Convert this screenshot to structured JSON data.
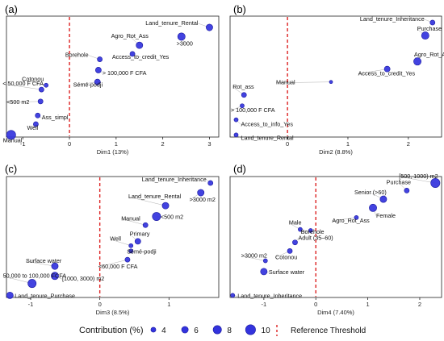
{
  "style": {
    "point_color": "#3333dd",
    "point_stroke": "#1a1aa0",
    "threshold_color": "#dd2222"
  },
  "chart_data": [
    {
      "type": "scatter",
      "panel": "(a)",
      "xlabel": "Dim1 (13%)",
      "xlim": [
        -1.35,
        3.2
      ],
      "ylim": [
        0,
        1
      ],
      "xticks": [
        -1,
        0,
        1,
        2,
        3
      ],
      "threshold": 0,
      "points": [
        {
          "label": "Land_tenure_Rental",
          "x": 3.0,
          "y": 0.955,
          "size": 6
        },
        {
          "label": ">3000",
          "x": 2.4,
          "y": 0.87,
          "size": 7
        },
        {
          "label": "Agro_Rot_Ass",
          "x": 1.5,
          "y": 0.79,
          "size": 6
        },
        {
          "label": "Borehole",
          "x": 0.65,
          "y": 0.66,
          "size": 4
        },
        {
          "label": "Access_to_credit_Yes",
          "x": 1.35,
          "y": 0.71,
          "size": 4
        },
        {
          "label": "> 100,000 F CFA",
          "x": 0.62,
          "y": 0.56,
          "size": 5
        },
        {
          "label": "Sémé-podji",
          "x": 0.6,
          "y": 0.45,
          "size": 5
        },
        {
          "label": "Cotonou",
          "x": -0.5,
          "y": 0.42,
          "size": 3
        },
        {
          "label": "< 50,000 F CFA",
          "x": -0.6,
          "y": 0.38,
          "size": 4
        },
        {
          "label": "<500 m2",
          "x": -0.62,
          "y": 0.27,
          "size": 4
        },
        {
          "label": "Ass_simpl",
          "x": -0.68,
          "y": 0.14,
          "size": 4
        },
        {
          "label": "Well",
          "x": -0.72,
          "y": 0.06,
          "size": 4
        },
        {
          "label": "Manual",
          "x": -1.25,
          "y": -0.04,
          "size": 9
        }
      ]
    },
    {
      "type": "scatter",
      "panel": "(b)",
      "xlabel": "Dim2 (8.8%)",
      "xlim": [
        -0.95,
        2.55
      ],
      "ylim": [
        0,
        1
      ],
      "xticks": [
        0,
        1,
        2
      ],
      "threshold": 0,
      "points": [
        {
          "label": "Land_tenure_Inheritance",
          "x": 2.4,
          "y": 1.0,
          "size": 4
        },
        {
          "label": "Purchase",
          "x": 2.28,
          "y": 0.88,
          "size": 7
        },
        {
          "label": "Agro_Rot_Ass",
          "x": 2.15,
          "y": 0.64,
          "size": 7
        },
        {
          "label": "Access_to_credit_Yes",
          "x": 1.65,
          "y": 0.57,
          "size": 5
        },
        {
          "label": "Manual",
          "x": 0.72,
          "y": 0.45,
          "size": 2
        },
        {
          "label": "Rot_ass",
          "x": -0.72,
          "y": 0.33,
          "size": 4
        },
        {
          "label": "> 100,000 F CFA",
          "x": -0.75,
          "y": 0.23,
          "size": 3
        },
        {
          "label": "Access_to_info_Yes",
          "x": -0.85,
          "y": 0.1,
          "size": 3
        },
        {
          "label": "Land_tenure_Rental",
          "x": -0.85,
          "y": -0.04,
          "size": 3
        }
      ]
    },
    {
      "type": "scatter",
      "panel": "(c)",
      "xlabel": "Dim3 (8.5%)",
      "xlim": [
        -1.35,
        1.72
      ],
      "ylim": [
        0,
        1
      ],
      "xticks": [
        -1,
        0,
        1
      ],
      "threshold": 0,
      "points": [
        {
          "label": "Land_tenure_Inheritance",
          "x": 1.6,
          "y": 1.0,
          "size": 4
        },
        {
          "label": ">3000 m2",
          "x": 1.46,
          "y": 0.91,
          "size": 6
        },
        {
          "label": "Land_tenure_Rental",
          "x": 0.95,
          "y": 0.79,
          "size": 6
        },
        {
          "label": "<500 m2",
          "x": 0.82,
          "y": 0.69,
          "size": 8
        },
        {
          "label": "Manual",
          "x": 0.66,
          "y": 0.61,
          "size": 4
        },
        {
          "label": "Primary",
          "x": 0.55,
          "y": 0.46,
          "size": 5
        },
        {
          "label": "Well",
          "x": 0.45,
          "y": 0.42,
          "size": 3
        },
        {
          "label": "Sémé-podji",
          "x": 0.45,
          "y": 0.37,
          "size": 3
        },
        {
          "label": "<60,000 F CFA",
          "x": 0.4,
          "y": 0.29,
          "size": 4
        },
        {
          "label": "Surface water",
          "x": -0.65,
          "y": 0.23,
          "size": 6
        },
        {
          "label": "[1000, 3000) m2",
          "x": -0.65,
          "y": 0.14,
          "size": 7
        },
        {
          "label": "50,000 to 100,000 FCFA",
          "x": -0.98,
          "y": 0.07,
          "size": 8
        },
        {
          "label": "Land_tenure_Purchase",
          "x": -1.3,
          "y": -0.04,
          "size": 6
        }
      ]
    },
    {
      "type": "scatter",
      "panel": "(d)",
      "xlabel": "Dim4 (7.40%)",
      "xlim": [
        -1.65,
        2.42
      ],
      "ylim": [
        0,
        1
      ],
      "xticks": [
        -1,
        0,
        1,
        2
      ],
      "threshold": 0,
      "points": [
        {
          "label": "[500, 1000) m2",
          "x": 2.3,
          "y": 1.0,
          "size": 9
        },
        {
          "label": "Purchase",
          "x": 1.75,
          "y": 0.93,
          "size": 4
        },
        {
          "label": "Senior (>60)",
          "x": 1.3,
          "y": 0.85,
          "size": 6
        },
        {
          "label": "Female",
          "x": 1.1,
          "y": 0.77,
          "size": 7
        },
        {
          "label": "Agro_Rot_Ass",
          "x": 0.78,
          "y": 0.68,
          "size": 3
        },
        {
          "label": "Male",
          "x": -0.3,
          "y": 0.57,
          "size": 3
        },
        {
          "label": "Borehole",
          "x": -0.1,
          "y": 0.56,
          "size": 3
        },
        {
          "label": "Adult (35–60)",
          "x": -0.4,
          "y": 0.45,
          "size": 4
        },
        {
          "label": "Cotonou",
          "x": -0.5,
          "y": 0.37,
          "size": 4
        },
        {
          "label": ">3000 m2",
          "x": -0.97,
          "y": 0.28,
          "size": 3
        },
        {
          "label": "Surface water",
          "x": -1.0,
          "y": 0.18,
          "size": 6
        },
        {
          "label": "Land_tenure_Inheritance",
          "x": -1.6,
          "y": -0.04,
          "size": 3
        }
      ]
    }
  ],
  "legend": {
    "contribution_title": "Contribution (%)",
    "contribution_values": [
      4,
      6,
      8,
      10
    ],
    "threshold_label": "Reference Threshold"
  }
}
